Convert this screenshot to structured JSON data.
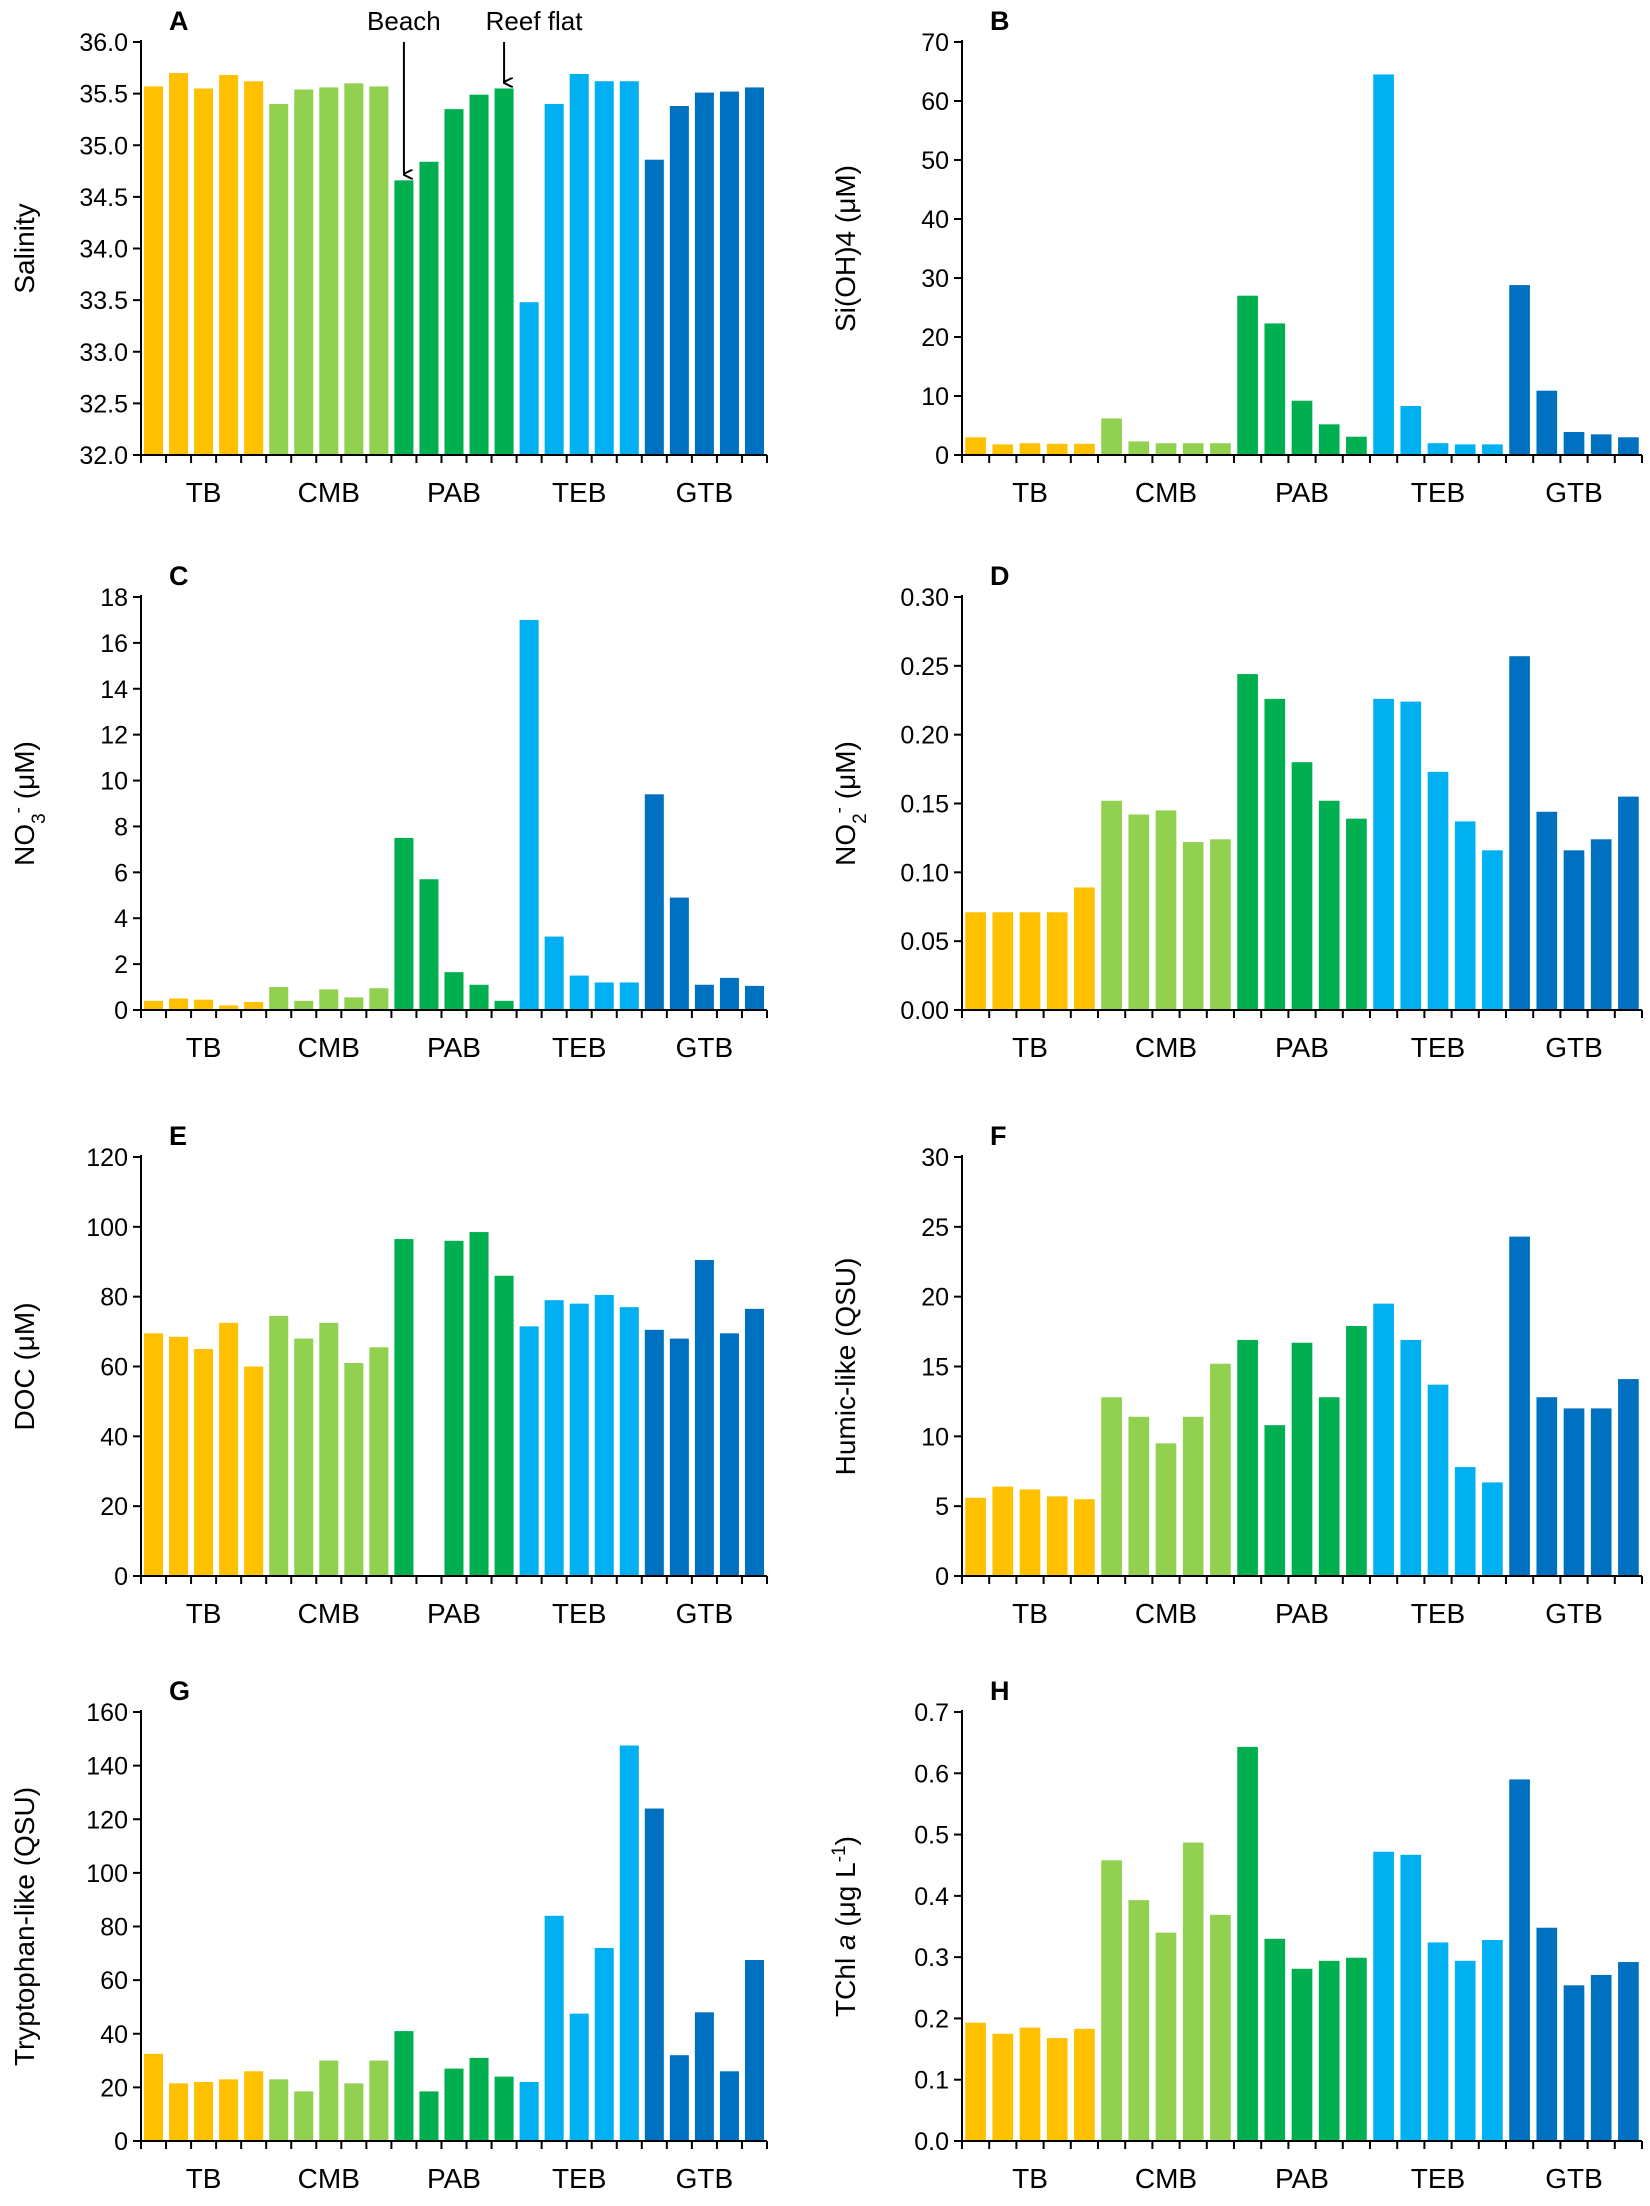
{
  "colors": {
    "TB": "#FFC000",
    "CMB": "#92D050",
    "PAB": "#00B050",
    "TEB": "#00B0F0",
    "GTB": "#0070C0",
    "axis": "#000000"
  },
  "groups": [
    "TB",
    "CMB",
    "PAB",
    "TEB",
    "GTB"
  ],
  "chart_data": [
    {
      "id": "A",
      "type": "bar",
      "letter": "A",
      "ylabel_parts": [
        {
          "t": "Salinity"
        }
      ],
      "ylim": [
        32,
        36
      ],
      "yticks": [
        32.0,
        32.5,
        33.0,
        33.5,
        34.0,
        34.5,
        35.0,
        35.5,
        36.0
      ],
      "tick_labels": [
        "32.0",
        "32.5",
        "33.0",
        "33.5",
        "34.0",
        "34.5",
        "35.0",
        "35.5",
        "36.0"
      ],
      "group_labels": [
        "TB",
        "CMB",
        "PAB",
        "TEB",
        "GTB"
      ],
      "series": [
        {
          "name": "TB",
          "values": [
            35.57,
            35.7,
            35.55,
            35.68,
            35.62
          ]
        },
        {
          "name": "CMB",
          "values": [
            35.4,
            35.54,
            35.56,
            35.6,
            35.57
          ]
        },
        {
          "name": "PAB",
          "values": [
            34.66,
            34.84,
            35.35,
            35.49,
            35.55
          ]
        },
        {
          "name": "TEB",
          "values": [
            33.48,
            35.4,
            35.69,
            35.62,
            35.62
          ]
        },
        {
          "name": "GTB",
          "values": [
            34.86,
            35.38,
            35.51,
            35.52,
            35.56
          ]
        }
      ],
      "annotations": [
        {
          "text": "Beach",
          "group": 2,
          "bar": 0
        },
        {
          "text": "Reef flat",
          "group": 2,
          "bar": 4
        }
      ]
    },
    {
      "id": "B",
      "type": "bar",
      "letter": "B",
      "ylabel_parts": [
        {
          "t": "Si(OH)4 (μM)"
        }
      ],
      "ylim": [
        0,
        70
      ],
      "yticks": [
        0,
        10,
        20,
        30,
        40,
        50,
        60,
        70
      ],
      "tick_labels": [
        "0",
        "10",
        "20",
        "30",
        "40",
        "50",
        "60",
        "70"
      ],
      "group_labels": [
        "TB",
        "CMB",
        "PAB",
        "TEB",
        "GTB"
      ],
      "series": [
        {
          "name": "TB",
          "values": [
            3.0,
            1.8,
            2.0,
            1.9,
            1.9
          ]
        },
        {
          "name": "CMB",
          "values": [
            6.2,
            2.3,
            2.0,
            2.0,
            2.0
          ]
        },
        {
          "name": "PAB",
          "values": [
            27.0,
            22.3,
            9.2,
            5.2,
            3.1
          ]
        },
        {
          "name": "TEB",
          "values": [
            64.5,
            8.3,
            2.0,
            1.8,
            1.8
          ]
        },
        {
          "name": "GTB",
          "values": [
            28.8,
            10.9,
            3.9,
            3.5,
            3.0
          ]
        }
      ]
    },
    {
      "id": "C",
      "type": "bar",
      "letter": "C",
      "ylabel_parts": [
        {
          "t": "NO"
        },
        {
          "t": "3",
          "sub": true
        },
        {
          "t": "-",
          "sup": true
        },
        {
          "t": " (μM)"
        }
      ],
      "ylim": [
        0,
        18
      ],
      "yticks": [
        0,
        2,
        4,
        6,
        8,
        10,
        12,
        14,
        16,
        18
      ],
      "tick_labels": [
        "0",
        "2",
        "4",
        "6",
        "8",
        "10",
        "12",
        "14",
        "16",
        "18"
      ],
      "group_labels": [
        "TB",
        "CMB",
        "PAB",
        "TEB",
        "GTB"
      ],
      "series": [
        {
          "name": "TB",
          "values": [
            0.4,
            0.5,
            0.45,
            0.2,
            0.35
          ]
        },
        {
          "name": "CMB",
          "values": [
            1.0,
            0.4,
            0.9,
            0.55,
            0.95
          ]
        },
        {
          "name": "PAB",
          "values": [
            7.5,
            5.7,
            1.65,
            1.1,
            0.4
          ]
        },
        {
          "name": "TEB",
          "values": [
            17.0,
            3.2,
            1.5,
            1.2,
            1.2
          ]
        },
        {
          "name": "GTB",
          "values": [
            9.4,
            4.9,
            1.1,
            1.4,
            1.05
          ]
        }
      ]
    },
    {
      "id": "D",
      "type": "bar",
      "letter": "D",
      "ylabel_parts": [
        {
          "t": "NO"
        },
        {
          "t": "2",
          "sub": true
        },
        {
          "t": "-",
          "sup": true
        },
        {
          "t": " (μM)"
        }
      ],
      "ylim": [
        0,
        0.3
      ],
      "yticks": [
        0,
        0.05,
        0.1,
        0.15,
        0.2,
        0.25,
        0.3
      ],
      "tick_labels": [
        "0.00",
        "0.05",
        "0.10",
        "0.15",
        "0.20",
        "0.25",
        "0.30"
      ],
      "group_labels": [
        "TB",
        "CMB",
        "PAB",
        "TEB",
        "GTB"
      ],
      "series": [
        {
          "name": "TB",
          "values": [
            0.071,
            0.071,
            0.071,
            0.071,
            0.089
          ]
        },
        {
          "name": "CMB",
          "values": [
            0.152,
            0.142,
            0.145,
            0.122,
            0.124
          ]
        },
        {
          "name": "PAB",
          "values": [
            0.244,
            0.226,
            0.18,
            0.152,
            0.139
          ]
        },
        {
          "name": "TEB",
          "values": [
            0.226,
            0.224,
            0.173,
            0.137,
            0.116
          ]
        },
        {
          "name": "GTB",
          "values": [
            0.257,
            0.144,
            0.116,
            0.124,
            0.155
          ]
        }
      ]
    },
    {
      "id": "E",
      "type": "bar",
      "letter": "E",
      "ylabel_parts": [
        {
          "t": "DOC (μM)"
        }
      ],
      "ylim": [
        0,
        120
      ],
      "yticks": [
        0,
        20,
        40,
        60,
        80,
        100,
        120
      ],
      "tick_labels": [
        "0",
        "20",
        "40",
        "60",
        "80",
        "100",
        "120"
      ],
      "group_labels": [
        "TB",
        "CMB",
        "PAB",
        "TEB",
        "GTB"
      ],
      "series": [
        {
          "name": "TB",
          "values": [
            69.5,
            68.5,
            65.0,
            72.5,
            60.0
          ]
        },
        {
          "name": "CMB",
          "values": [
            74.5,
            68.0,
            72.5,
            61.0,
            65.5
          ]
        },
        {
          "name": "PAB",
          "values": [
            96.5,
            null,
            96.0,
            98.5,
            86.0
          ]
        },
        {
          "name": "TEB",
          "values": [
            71.5,
            79.0,
            78.0,
            80.5,
            77.0
          ]
        },
        {
          "name": "GTB",
          "values": [
            70.5,
            68.0,
            90.5,
            69.5,
            76.5
          ]
        }
      ]
    },
    {
      "id": "F",
      "type": "bar",
      "letter": "F",
      "ylabel_parts": [
        {
          "t": "Humic-like (QSU)"
        }
      ],
      "ylim": [
        0,
        30
      ],
      "yticks": [
        0,
        5,
        10,
        15,
        20,
        25,
        30
      ],
      "tick_labels": [
        "0",
        "5",
        "10",
        "15",
        "20",
        "25",
        "30"
      ],
      "group_labels": [
        "TB",
        "CMB",
        "PAB",
        "TEB",
        "GTB"
      ],
      "series": [
        {
          "name": "TB",
          "values": [
            5.6,
            6.4,
            6.2,
            5.7,
            5.5
          ]
        },
        {
          "name": "CMB",
          "values": [
            12.8,
            11.4,
            9.5,
            11.4,
            15.2
          ]
        },
        {
          "name": "PAB",
          "values": [
            16.9,
            10.8,
            16.7,
            12.8,
            17.9
          ]
        },
        {
          "name": "TEB",
          "values": [
            19.5,
            16.9,
            13.7,
            7.8,
            6.7
          ]
        },
        {
          "name": "GTB",
          "values": [
            24.3,
            12.8,
            12.0,
            12.0,
            14.1
          ]
        }
      ]
    },
    {
      "id": "G",
      "type": "bar",
      "letter": "G",
      "ylabel_parts": [
        {
          "t": "Tryptophan-like (QSU)"
        }
      ],
      "ylim": [
        0,
        160
      ],
      "yticks": [
        0,
        20,
        40,
        60,
        80,
        100,
        120,
        140,
        160
      ],
      "tick_labels": [
        "0",
        "20",
        "40",
        "60",
        "80",
        "100",
        "120",
        "140",
        "160"
      ],
      "group_labels": [
        "TB",
        "CMB",
        "PAB",
        "TEB",
        "GTB"
      ],
      "series": [
        {
          "name": "TB",
          "values": [
            32.5,
            21.5,
            22.0,
            23.0,
            26.0
          ]
        },
        {
          "name": "CMB",
          "values": [
            23.0,
            18.5,
            30.0,
            21.5,
            30.0
          ]
        },
        {
          "name": "PAB",
          "values": [
            41.0,
            18.5,
            27.0,
            31.0,
            24.0
          ]
        },
        {
          "name": "TEB",
          "values": [
            22.0,
            84.0,
            47.5,
            72.0,
            147.5
          ]
        },
        {
          "name": "GTB",
          "values": [
            124.0,
            32.0,
            48.0,
            26.0,
            67.5
          ]
        }
      ]
    },
    {
      "id": "H",
      "type": "bar",
      "letter": "H",
      "ylabel_parts": [
        {
          "t": "TChl "
        },
        {
          "t": "a",
          "italic": true
        },
        {
          "t": " (μg L"
        },
        {
          "t": "-1",
          "sup": true
        },
        {
          "t": ")"
        }
      ],
      "ylim": [
        0,
        0.7
      ],
      "yticks": [
        0,
        0.1,
        0.2,
        0.3,
        0.4,
        0.5,
        0.6,
        0.7
      ],
      "tick_labels": [
        "0.0",
        "0.1",
        "0.2",
        "0.3",
        "0.4",
        "0.5",
        "0.6",
        "0.7"
      ],
      "group_labels": [
        "TB",
        "CMB",
        "PAB",
        "TEB",
        "GTB"
      ],
      "series": [
        {
          "name": "TB",
          "values": [
            0.193,
            0.175,
            0.185,
            0.168,
            0.183
          ]
        },
        {
          "name": "CMB",
          "values": [
            0.458,
            0.393,
            0.34,
            0.487,
            0.369
          ]
        },
        {
          "name": "PAB",
          "values": [
            0.643,
            0.33,
            0.281,
            0.294,
            0.299
          ]
        },
        {
          "name": "TEB",
          "values": [
            0.472,
            0.467,
            0.324,
            0.294,
            0.328
          ]
        },
        {
          "name": "GTB",
          "values": [
            0.59,
            0.348,
            0.254,
            0.271,
            0.292
          ]
        }
      ]
    }
  ]
}
